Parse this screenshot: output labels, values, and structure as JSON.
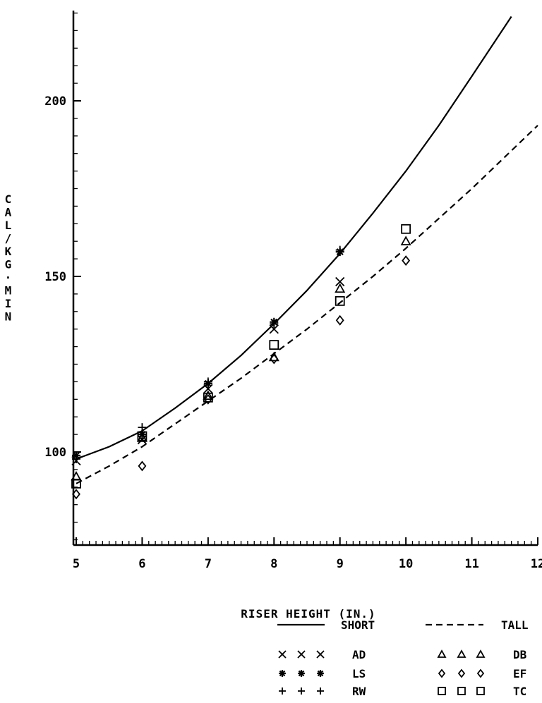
{
  "chart_data": {
    "type": "scatter",
    "title": "",
    "xlabel": "RISER HEIGHT (IN.)",
    "ylabel": "CAL/KG·MIN",
    "ylabel_chars": [
      "C",
      "A",
      "L",
      "/",
      "K",
      "G",
      "·",
      "M",
      "I",
      "N"
    ],
    "xlim": [
      5,
      12
    ],
    "ylim": [
      75,
      227
    ],
    "x_ticks": [
      5,
      6,
      7,
      8,
      9,
      10,
      11,
      12
    ],
    "x_tick_labels": [
      "5",
      "6",
      "7",
      "8",
      "9",
      "10",
      "11",
      "12"
    ],
    "y_ticks": [
      100,
      150,
      200
    ],
    "y_tick_labels": [
      "100",
      "150",
      "200"
    ],
    "grid": false,
    "legend_position": "bottom-right",
    "curves": [
      {
        "name": "SHORT",
        "style": "solid",
        "x": [
          5,
          5.5,
          6,
          6.5,
          7,
          7.5,
          8,
          8.5,
          9,
          9.5,
          10,
          10.5,
          11,
          11.6
        ],
        "y": [
          98,
          101.5,
          106,
          112.5,
          119.5,
          127.5,
          136.5,
          146,
          156.5,
          168,
          180,
          193,
          207,
          224
        ]
      },
      {
        "name": "TALL",
        "style": "dashed",
        "x": [
          5,
          5.5,
          6,
          6.5,
          7,
          7.5,
          8,
          8.5,
          9,
          9.5,
          10,
          10.5,
          11,
          11.5,
          12
        ],
        "y": [
          91,
          96,
          101.5,
          108,
          114.5,
          121,
          128,
          135,
          142.5,
          150,
          158,
          166.5,
          175,
          184,
          193
        ]
      }
    ],
    "series": [
      {
        "name": "AD",
        "marker": "x",
        "x": [
          5,
          6,
          7,
          8,
          9
        ],
        "y": [
          97.5,
          103.5,
          118,
          135,
          148.5
        ]
      },
      {
        "name": "LS",
        "marker": "asterisk",
        "x": [
          5,
          6,
          7,
          8,
          9
        ],
        "y": [
          99,
          105,
          119.5,
          137,
          157
        ]
      },
      {
        "name": "RW",
        "marker": "plus",
        "x": [
          5,
          6,
          7,
          8,
          9
        ],
        "y": [
          98,
          107,
          120,
          136.5,
          157.5
        ]
      },
      {
        "name": "DB",
        "marker": "triangle",
        "x": [
          5,
          6,
          7,
          8,
          9,
          10
        ],
        "y": [
          93,
          104,
          116,
          127,
          146.5,
          160
        ]
      },
      {
        "name": "EF",
        "marker": "diamond",
        "x": [
          5,
          6,
          7,
          8,
          9,
          10
        ],
        "y": [
          88,
          96,
          115,
          126.5,
          137.5,
          154.5
        ]
      },
      {
        "name": "TC",
        "marker": "square",
        "x": [
          5,
          6,
          7,
          8,
          9,
          10
        ],
        "y": [
          91,
          104.5,
          115.5,
          130.5,
          143,
          163.5
        ]
      }
    ],
    "legend": {
      "lines": [
        {
          "label": "SHORT",
          "style": "solid"
        },
        {
          "label": "TALL",
          "style": "dashed"
        }
      ],
      "markers_left": [
        {
          "label": "AD",
          "marker": "x"
        },
        {
          "label": "LS",
          "marker": "asterisk"
        },
        {
          "label": "RW",
          "marker": "plus"
        }
      ],
      "markers_right": [
        {
          "label": "DB",
          "marker": "triangle"
        },
        {
          "label": "EF",
          "marker": "diamond"
        },
        {
          "label": "TC",
          "marker": "square"
        }
      ]
    }
  }
}
